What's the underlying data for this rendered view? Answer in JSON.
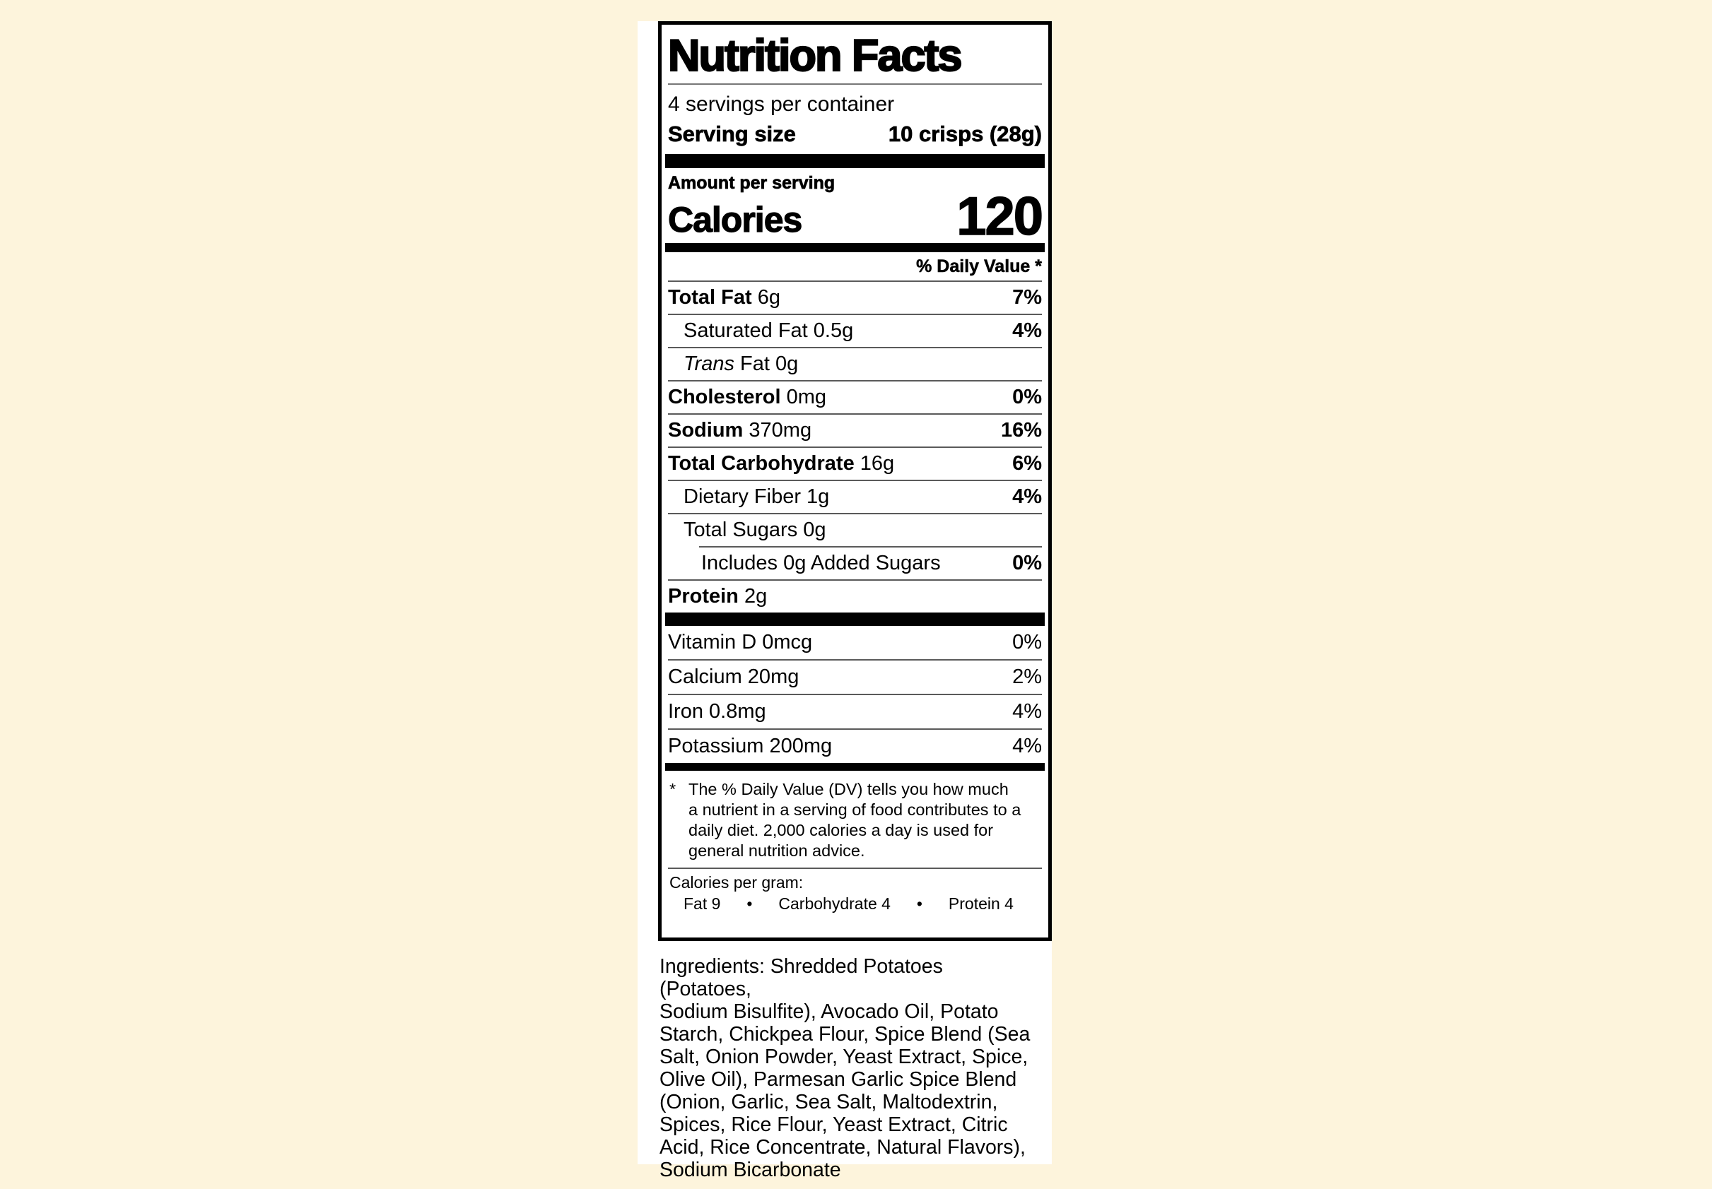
{
  "colors": {
    "page_background": "#fdf4dc",
    "panel_background": "#ffffff",
    "text": "#000000",
    "bar": "#000000"
  },
  "nutrition_label": {
    "title": "Nutrition Facts",
    "servings_per_container": "4 servings per container",
    "serving_size": {
      "label": "Serving size",
      "value": "10 crisps (28g)"
    },
    "amount_per_serving": "Amount per serving",
    "calories": {
      "label": "Calories",
      "value": "120"
    },
    "daily_value_header": "% Daily Value *",
    "nutrient_rows": [
      {
        "name": "Total Fat",
        "name_style": "bold",
        "amount": "6g",
        "daily_value": "7%",
        "dv_bold": true,
        "indent": 0,
        "separator_indent": false
      },
      {
        "name": "Saturated Fat",
        "name_style": "regular",
        "amount": "0.5g",
        "daily_value": "4%",
        "dv_bold": true,
        "indent": 1,
        "separator_indent": false
      },
      {
        "name": "Trans",
        "name_style": "italic",
        "amount": "Fat 0g",
        "daily_value": "",
        "dv_bold": false,
        "indent": 1,
        "separator_indent": false
      },
      {
        "name": "Cholesterol",
        "name_style": "bold",
        "amount": "0mg",
        "daily_value": "0%",
        "dv_bold": true,
        "indent": 0,
        "separator_indent": false
      },
      {
        "name": "Sodium",
        "name_style": "bold",
        "amount": "370mg",
        "daily_value": "16%",
        "dv_bold": true,
        "indent": 0,
        "separator_indent": false
      },
      {
        "name": "Total Carbohydrate",
        "name_style": "bold",
        "amount": "16g",
        "daily_value": "6%",
        "dv_bold": true,
        "indent": 0,
        "separator_indent": false
      },
      {
        "name": "Dietary Fiber",
        "name_style": "regular",
        "amount": "1g",
        "daily_value": "4%",
        "dv_bold": true,
        "indent": 1,
        "separator_indent": false
      },
      {
        "name": "Total Sugars",
        "name_style": "regular",
        "amount": "0g",
        "daily_value": "",
        "dv_bold": false,
        "indent": 1,
        "separator_indent": false
      },
      {
        "name": "Includes 0g Added Sugars",
        "name_style": "regular",
        "amount": "",
        "daily_value": "0%",
        "dv_bold": true,
        "indent": 2,
        "separator_indent": true
      },
      {
        "name": "Protein",
        "name_style": "bold",
        "amount": "2g",
        "daily_value": "",
        "dv_bold": false,
        "indent": 0,
        "separator_indent": false
      }
    ],
    "vitamin_rows": [
      {
        "name": "Vitamin D",
        "amount": "0mcg",
        "daily_value": "0%"
      },
      {
        "name": "Calcium",
        "amount": "20mg",
        "daily_value": "2%"
      },
      {
        "name": "Iron",
        "amount": "0.8mg",
        "daily_value": "4%"
      },
      {
        "name": "Potassium",
        "amount": "200mg",
        "daily_value": "4%"
      }
    ],
    "footnote": {
      "marker": "*",
      "lines": [
        "The % Daily Value (DV) tells you how much",
        "a nutrient in a serving of food contributes to a",
        "daily diet. 2,000 calories a day is used for",
        "general nutrition advice."
      ]
    },
    "calories_per_gram": {
      "label": "Calories per gram:",
      "bullet": "•",
      "items": [
        "Fat 9",
        "Carbohydrate 4",
        "Protein 4"
      ]
    }
  },
  "ingredients": {
    "lines": [
      "Ingredients: Shredded Potatoes (Potatoes,",
      "Sodium Bisulfite), Avocado Oil, Potato",
      "Starch, Chickpea Flour, Spice Blend (Sea",
      "Salt, Onion Powder, Yeast Extract, Spice,",
      "Olive Oil), Parmesan Garlic Spice Blend",
      "(Onion, Garlic, Sea Salt, Maltodextrin,",
      "Spices, Rice Flour, Yeast Extract, Citric",
      "Acid, Rice Concentrate, Natural Flavors),",
      "Sodium Bicarbonate"
    ]
  }
}
